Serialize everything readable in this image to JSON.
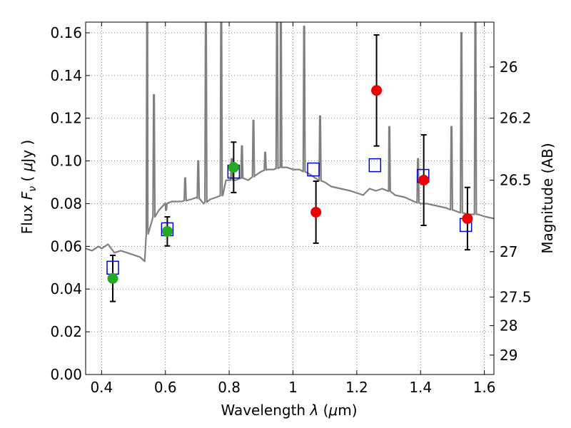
{
  "chart_data": {
    "type": "scatter",
    "xlabel": "Wavelength  λ (μm)",
    "ylabel": "Flux  F_ν  ( μJy )",
    "ylabel_right": "Magnitude (AB)",
    "xlim": [
      0.35,
      1.63
    ],
    "ylim": [
      0.0,
      0.165
    ],
    "grid": true,
    "x_ticks": [
      0.4,
      0.6,
      0.8,
      1.0,
      1.2,
      1.4,
      1.6
    ],
    "x_tick_labels": [
      "0.4",
      "0.6",
      "0.8",
      "1",
      "1.2",
      "1.4",
      "1.6"
    ],
    "y_ticks": [
      0.0,
      0.02,
      0.04,
      0.06,
      0.08,
      0.1,
      0.12,
      0.14,
      0.16
    ],
    "y_tick_labels": [
      "0.00",
      "0.02",
      "0.04",
      "0.06",
      "0.08",
      "0.10",
      "0.12",
      "0.14",
      "0.16"
    ],
    "right_ticks": [
      {
        "label": "26",
        "flux": 0.144
      },
      {
        "label": "26.2",
        "flux": 0.12
      },
      {
        "label": "26.5",
        "flux": 0.091
      },
      {
        "label": "27",
        "flux": 0.0575
      },
      {
        "label": "27.5",
        "flux": 0.0363
      },
      {
        "label": "28",
        "flux": 0.0229
      },
      {
        "label": "29",
        "flux": 0.0091
      }
    ],
    "colors": {
      "model": "#808080",
      "model_photometry": "#0000cc",
      "detection": "#22aa22",
      "low_snr": "#ee0000",
      "errorbar": "#000000",
      "grid": "#555555"
    },
    "model_spectrum": {
      "continuum": [
        [
          0.35,
          0.059
        ],
        [
          0.37,
          0.058
        ],
        [
          0.39,
          0.06
        ],
        [
          0.4,
          0.059
        ],
        [
          0.42,
          0.061
        ],
        [
          0.44,
          0.057
        ],
        [
          0.46,
          0.058
        ],
        [
          0.48,
          0.057
        ],
        [
          0.5,
          0.056
        ],
        [
          0.52,
          0.055
        ],
        [
          0.535,
          0.053
        ],
        [
          0.545,
          0.069
        ],
        [
          0.56,
          0.073
        ],
        [
          0.58,
          0.077
        ],
        [
          0.6,
          0.08
        ],
        [
          0.62,
          0.081
        ],
        [
          0.65,
          0.081
        ],
        [
          0.68,
          0.082
        ],
        [
          0.7,
          0.083
        ],
        [
          0.72,
          0.08
        ],
        [
          0.74,
          0.082
        ],
        [
          0.76,
          0.083
        ],
        [
          0.78,
          0.084
        ],
        [
          0.79,
          0.091
        ],
        [
          0.82,
          0.091
        ],
        [
          0.84,
          0.092
        ],
        [
          0.86,
          0.091
        ],
        [
          0.88,
          0.093
        ],
        [
          0.9,
          0.095
        ],
        [
          0.92,
          0.096
        ],
        [
          0.94,
          0.096
        ],
        [
          0.96,
          0.097
        ],
        [
          0.98,
          0.097
        ],
        [
          1.0,
          0.096
        ],
        [
          1.02,
          0.096
        ],
        [
          1.05,
          0.094
        ],
        [
          1.08,
          0.091
        ],
        [
          1.1,
          0.09
        ],
        [
          1.12,
          0.088
        ],
        [
          1.15,
          0.087
        ],
        [
          1.18,
          0.086
        ],
        [
          1.2,
          0.085
        ],
        [
          1.22,
          0.084
        ],
        [
          1.24,
          0.087
        ],
        [
          1.26,
          0.086
        ],
        [
          1.28,
          0.087
        ],
        [
          1.3,
          0.086
        ],
        [
          1.32,
          0.084
        ],
        [
          1.35,
          0.083
        ],
        [
          1.38,
          0.081
        ],
        [
          1.4,
          0.08
        ],
        [
          1.42,
          0.08
        ],
        [
          1.45,
          0.079
        ],
        [
          1.48,
          0.078
        ],
        [
          1.5,
          0.077
        ],
        [
          1.52,
          0.076
        ],
        [
          1.55,
          0.075
        ],
        [
          1.58,
          0.075
        ],
        [
          1.6,
          0.074
        ],
        [
          1.63,
          0.073
        ]
      ],
      "emission_lines": [
        {
          "x": 0.543,
          "peak": 0.17
        },
        {
          "x": 0.564,
          "peak": 0.131
        },
        {
          "x": 0.602,
          "peak": 0.077
        },
        {
          "x": 0.662,
          "peak": 0.092
        },
        {
          "x": 0.703,
          "peak": 0.1
        },
        {
          "x": 0.727,
          "peak": 0.17
        },
        {
          "x": 0.775,
          "peak": 0.17
        },
        {
          "x": 0.808,
          "peak": 0.101
        },
        {
          "x": 0.84,
          "peak": 0.107
        },
        {
          "x": 0.876,
          "peak": 0.119
        },
        {
          "x": 0.913,
          "peak": 0.104
        },
        {
          "x": 0.95,
          "peak": 0.17
        },
        {
          "x": 0.962,
          "peak": 0.17
        },
        {
          "x": 1.035,
          "peak": 0.163
        },
        {
          "x": 1.085,
          "peak": 0.121
        },
        {
          "x": 1.302,
          "peak": 0.116
        },
        {
          "x": 1.392,
          "peak": 0.101
        },
        {
          "x": 1.497,
          "peak": 0.116
        },
        {
          "x": 1.528,
          "peak": 0.16
        },
        {
          "x": 1.572,
          "peak": 0.17
        }
      ]
    },
    "series": [
      {
        "marker": "open-square",
        "points": [
          {
            "x": 0.435,
            "y": 0.05
          },
          {
            "x": 0.606,
            "y": 0.068
          },
          {
            "x": 0.814,
            "y": 0.095
          },
          {
            "x": 1.064,
            "y": 0.096
          },
          {
            "x": 1.257,
            "y": 0.098
          },
          {
            "x": 1.408,
            "y": 0.093
          },
          {
            "x": 1.542,
            "y": 0.07
          }
        ]
      },
      {
        "marker": "filled-circle",
        "color_key": "detection",
        "points": [
          {
            "x": 0.435,
            "y": 0.045,
            "err": 0.0108
          },
          {
            "x": 0.606,
            "y": 0.067,
            "err": 0.0068
          },
          {
            "x": 0.814,
            "y": 0.097,
            "err": 0.0118
          }
        ]
      },
      {
        "marker": "filled-circle",
        "color_key": "low_snr",
        "points": [
          {
            "x": 1.072,
            "y": 0.076,
            "err": 0.0145
          },
          {
            "x": 1.262,
            "y": 0.133,
            "err": 0.026
          },
          {
            "x": 1.41,
            "y": 0.091,
            "err": 0.0212
          },
          {
            "x": 1.547,
            "y": 0.073,
            "err": 0.0146
          }
        ]
      }
    ]
  }
}
